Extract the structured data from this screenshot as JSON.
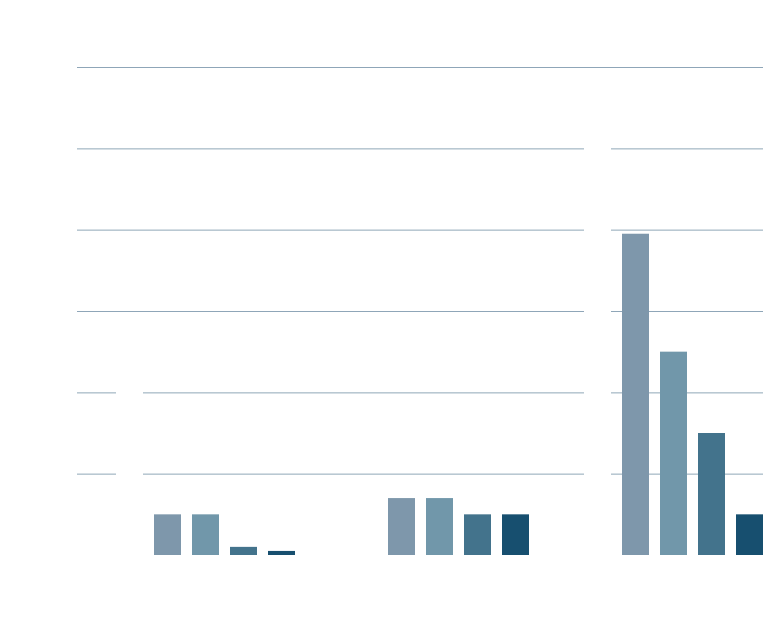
{
  "chart_data": {
    "type": "bar",
    "title": "",
    "xlabel": "",
    "ylabel": "",
    "ylim": [
      0,
      6
    ],
    "grid": true,
    "legend": "none",
    "series_colors": [
      "#7e97ab",
      "#7197aa",
      "#43738c",
      "#174f6f"
    ],
    "grid_color": "#8fa6b8",
    "groups": [
      {
        "values": [
          0.5,
          0.5,
          0.1,
          0.05
        ]
      },
      {
        "values": [
          0.7,
          0.7,
          0.5,
          0.5
        ]
      },
      {
        "values": [
          3.95,
          2.5,
          1.5,
          0.5
        ]
      }
    ]
  }
}
